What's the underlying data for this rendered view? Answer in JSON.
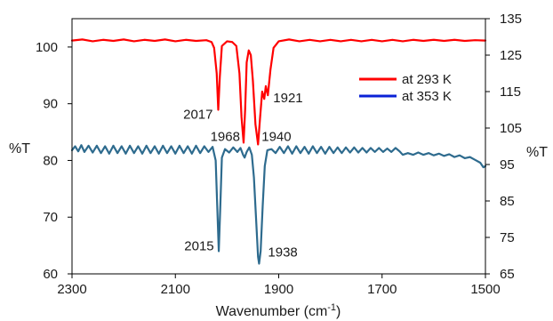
{
  "chart_data": {
    "type": "line",
    "xlabel": "Wavenumber (cm",
    "xlabel_sup": "-1",
    "xlabel_close": ")",
    "ylabel_left": "%T",
    "ylabel_right": "%T",
    "x_reversed": true,
    "xlim": [
      1500,
      2300
    ],
    "ylim_left": [
      60,
      105
    ],
    "ylim_right": [
      65,
      135
    ],
    "x_ticks": [
      "2300",
      "2100",
      "1900",
      "1700",
      "1500"
    ],
    "y_left_ticks": [
      "60",
      "70",
      "80",
      "90",
      "100"
    ],
    "y_right_ticks": [
      "65",
      "75",
      "85",
      "95",
      "105",
      "115",
      "125",
      "135"
    ],
    "grid": false,
    "legend_position": "right",
    "series": [
      {
        "name": "at 293 K",
        "color": "#ff0000",
        "axis": "right",
        "points": [
          [
            2300,
            129.0
          ],
          [
            2280,
            129.3
          ],
          [
            2260,
            128.8
          ],
          [
            2240,
            129.2
          ],
          [
            2220,
            128.9
          ],
          [
            2200,
            129.3
          ],
          [
            2180,
            128.8
          ],
          [
            2160,
            129.2
          ],
          [
            2140,
            128.9
          ],
          [
            2120,
            129.3
          ],
          [
            2100,
            128.8
          ],
          [
            2080,
            129.2
          ],
          [
            2060,
            128.9
          ],
          [
            2040,
            129.1
          ],
          [
            2030,
            128.6
          ],
          [
            2025,
            127.0
          ],
          [
            2020,
            120.0
          ],
          [
            2017,
            110.0
          ],
          [
            2014,
            119.0
          ],
          [
            2010,
            127.5
          ],
          [
            2000,
            128.8
          ],
          [
            1990,
            128.6
          ],
          [
            1982,
            127.5
          ],
          [
            1976,
            120.0
          ],
          [
            1972,
            108.0
          ],
          [
            1968,
            101.0
          ],
          [
            1965,
            110.0
          ],
          [
            1962,
            123.0
          ],
          [
            1958,
            126.3
          ],
          [
            1954,
            125.0
          ],
          [
            1950,
            118.0
          ],
          [
            1945,
            106.0
          ],
          [
            1940,
            100.5
          ],
          [
            1936,
            108.0
          ],
          [
            1932,
            115.0
          ],
          [
            1928,
            113.0
          ],
          [
            1925,
            116.5
          ],
          [
            1921,
            114.0
          ],
          [
            1916,
            121.0
          ],
          [
            1910,
            127.0
          ],
          [
            1900,
            128.8
          ],
          [
            1880,
            129.3
          ],
          [
            1860,
            128.8
          ],
          [
            1840,
            129.2
          ],
          [
            1820,
            128.8
          ],
          [
            1800,
            129.2
          ],
          [
            1780,
            128.8
          ],
          [
            1760,
            129.2
          ],
          [
            1740,
            128.8
          ],
          [
            1720,
            129.2
          ],
          [
            1700,
            128.8
          ],
          [
            1680,
            129.2
          ],
          [
            1660,
            128.8
          ],
          [
            1640,
            129.2
          ],
          [
            1620,
            128.9
          ],
          [
            1600,
            129.2
          ],
          [
            1580,
            128.9
          ],
          [
            1560,
            129.2
          ],
          [
            1540,
            128.9
          ],
          [
            1520,
            129.1
          ],
          [
            1500,
            129.0
          ]
        ]
      },
      {
        "name": "at 353 K",
        "color": "#2e6b8e",
        "axis": "left",
        "points": [
          [
            2300,
            81.8
          ],
          [
            2294,
            82.5
          ],
          [
            2288,
            81.6
          ],
          [
            2282,
            82.7
          ],
          [
            2276,
            81.5
          ],
          [
            2268,
            82.6
          ],
          [
            2260,
            81.4
          ],
          [
            2252,
            82.6
          ],
          [
            2244,
            81.3
          ],
          [
            2236,
            82.5
          ],
          [
            2228,
            81.2
          ],
          [
            2220,
            82.6
          ],
          [
            2212,
            81.3
          ],
          [
            2204,
            82.5
          ],
          [
            2196,
            81.2
          ],
          [
            2188,
            82.6
          ],
          [
            2180,
            81.3
          ],
          [
            2172,
            82.5
          ],
          [
            2164,
            81.2
          ],
          [
            2156,
            82.6
          ],
          [
            2148,
            81.3
          ],
          [
            2140,
            82.5
          ],
          [
            2132,
            81.2
          ],
          [
            2124,
            82.6
          ],
          [
            2116,
            81.3
          ],
          [
            2108,
            82.5
          ],
          [
            2100,
            81.2
          ],
          [
            2092,
            82.6
          ],
          [
            2084,
            81.3
          ],
          [
            2076,
            82.5
          ],
          [
            2068,
            81.2
          ],
          [
            2060,
            82.6
          ],
          [
            2052,
            81.3
          ],
          [
            2044,
            82.5
          ],
          [
            2036,
            81.5
          ],
          [
            2028,
            82.4
          ],
          [
            2022,
            80.0
          ],
          [
            2019,
            72.0
          ],
          [
            2016,
            64.0
          ],
          [
            2013,
            72.0
          ],
          [
            2010,
            80.5
          ],
          [
            2004,
            82.0
          ],
          [
            1996,
            81.4
          ],
          [
            1988,
            82.3
          ],
          [
            1980,
            81.5
          ],
          [
            1974,
            82.2
          ],
          [
            1969,
            81.0
          ],
          [
            1966,
            80.5
          ],
          [
            1962,
            81.5
          ],
          [
            1957,
            82.3
          ],
          [
            1952,
            81.0
          ],
          [
            1948,
            77.0
          ],
          [
            1944,
            70.0
          ],
          [
            1940,
            63.0
          ],
          [
            1938,
            61.8
          ],
          [
            1935,
            64.0
          ],
          [
            1931,
            72.0
          ],
          [
            1927,
            79.0
          ],
          [
            1922,
            81.8
          ],
          [
            1914,
            82.0
          ],
          [
            1906,
            81.3
          ],
          [
            1898,
            82.4
          ],
          [
            1890,
            81.3
          ],
          [
            1882,
            82.5
          ],
          [
            1874,
            81.2
          ],
          [
            1866,
            82.5
          ],
          [
            1858,
            81.3
          ],
          [
            1850,
            82.4
          ],
          [
            1842,
            81.2
          ],
          [
            1834,
            82.5
          ],
          [
            1826,
            81.3
          ],
          [
            1818,
            82.4
          ],
          [
            1810,
            81.2
          ],
          [
            1802,
            82.4
          ],
          [
            1794,
            81.3
          ],
          [
            1786,
            82.3
          ],
          [
            1778,
            81.3
          ],
          [
            1770,
            82.3
          ],
          [
            1762,
            81.4
          ],
          [
            1754,
            82.3
          ],
          [
            1746,
            81.4
          ],
          [
            1738,
            82.2
          ],
          [
            1730,
            81.4
          ],
          [
            1722,
            82.2
          ],
          [
            1714,
            81.5
          ],
          [
            1706,
            82.2
          ],
          [
            1698,
            81.5
          ],
          [
            1690,
            82.1
          ],
          [
            1682,
            81.5
          ],
          [
            1674,
            82.2
          ],
          [
            1666,
            81.6
          ],
          [
            1660,
            81.0
          ],
          [
            1650,
            81.3
          ],
          [
            1640,
            81.0
          ],
          [
            1630,
            81.4
          ],
          [
            1620,
            81.0
          ],
          [
            1610,
            81.3
          ],
          [
            1600,
            80.9
          ],
          [
            1590,
            81.2
          ],
          [
            1580,
            80.8
          ],
          [
            1570,
            81.1
          ],
          [
            1560,
            80.6
          ],
          [
            1550,
            80.9
          ],
          [
            1540,
            80.4
          ],
          [
            1530,
            80.6
          ],
          [
            1520,
            80.1
          ],
          [
            1510,
            79.6
          ],
          [
            1504,
            78.8
          ],
          [
            1500,
            79.0
          ]
        ]
      }
    ],
    "annotations": [
      {
        "text": "2017",
        "x": 2017,
        "y": 110,
        "axis": "right",
        "anchor": "end",
        "dx": -6,
        "dy": 10
      },
      {
        "text": "1968",
        "x": 1968,
        "y": 101,
        "axis": "right",
        "anchor": "end",
        "dx": -4,
        "dy": -2
      },
      {
        "text": "1940",
        "x": 1940,
        "y": 100.5,
        "axis": "right",
        "anchor": "start",
        "dx": 4,
        "dy": -4
      },
      {
        "text": "1921",
        "x": 1921,
        "y": 114,
        "axis": "right",
        "anchor": "start",
        "dx": 6,
        "dy": 8
      },
      {
        "text": "2015",
        "x": 2015,
        "y": 64,
        "axis": "left",
        "anchor": "end",
        "dx": -6,
        "dy": -1
      },
      {
        "text": "1938",
        "x": 1938,
        "y": 61.8,
        "axis": "left",
        "anchor": "start",
        "dx": 10,
        "dy": -8
      }
    ]
  }
}
